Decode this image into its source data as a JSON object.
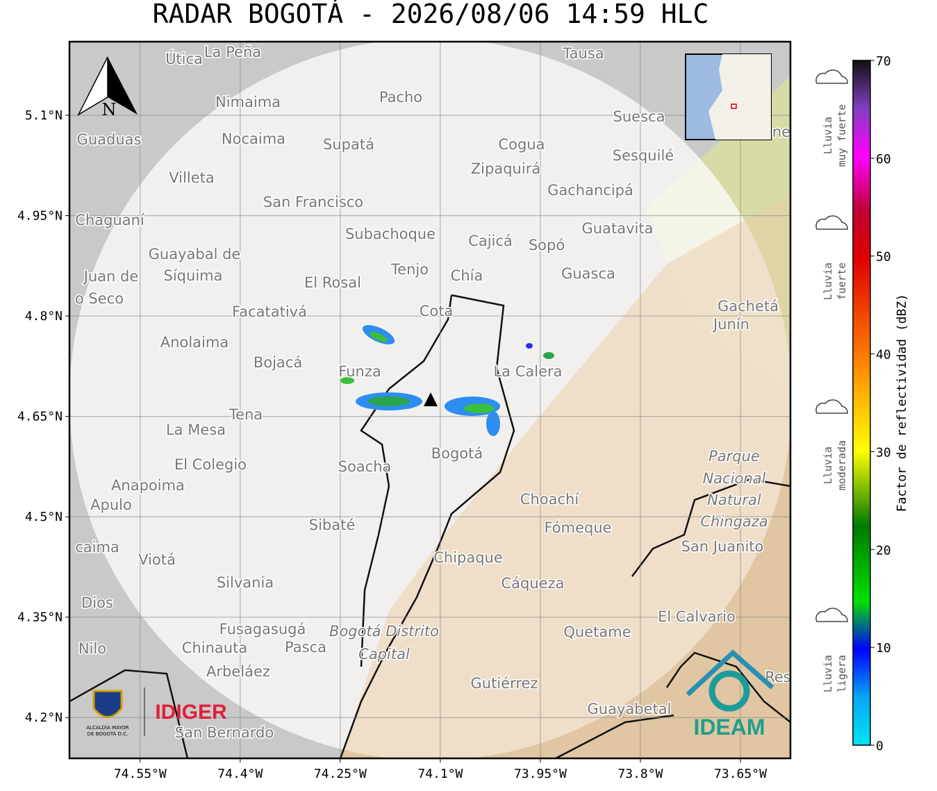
{
  "map": {
    "title": "RADAR BOGOTÁ - 2026/08/06 14:59 HLC",
    "xlim": [
      -74.656,
      -73.575
    ],
    "ylim": [
      4.139,
      5.21
    ],
    "xticks": [
      {
        "value": -74.55,
        "label": "74.55°W"
      },
      {
        "value": -74.4,
        "label": "74.4°W"
      },
      {
        "value": -74.25,
        "label": "74.25°W"
      },
      {
        "value": -74.1,
        "label": "74.1°W"
      },
      {
        "value": -73.95,
        "label": "73.95°W"
      },
      {
        "value": -73.8,
        "label": "73.8°W"
      },
      {
        "value": -73.65,
        "label": "73.65°W"
      }
    ],
    "yticks": [
      {
        "value": 5.1,
        "label": "5.1°N"
      },
      {
        "value": 4.95,
        "label": "4.95°N"
      },
      {
        "value": 4.8,
        "label": "4.8°N"
      },
      {
        "value": 4.65,
        "label": "4.65°N"
      },
      {
        "value": 4.5,
        "label": "4.5°N"
      },
      {
        "value": 4.35,
        "label": "4.35°N"
      },
      {
        "value": 4.2,
        "label": "4.2°N"
      }
    ],
    "north": "N",
    "places": [
      "Útica",
      "La Peña",
      "Tausa",
      "Pacho",
      "Nimaima",
      "Guaduas",
      "Nocaima",
      "Supatá",
      "Cogua",
      "Suesca",
      "Sesquilé",
      "Zipaquirá",
      "Villeta",
      "Gachancipá",
      "San Francisco",
      "Chaguaní",
      "Guatavita",
      "Subachoque",
      "Cajicá",
      "Sopó",
      "Guayabal de",
      "Síquima",
      "Juan de",
      "Tenjo",
      "Chía",
      "Guasca",
      "El Rosal",
      "o Seco",
      "Facatativá",
      "Cota",
      "Gachetá",
      "Junín",
      "Anolaima",
      "Bojacá",
      "Funza",
      "La Calera",
      "Tena",
      "La Mesa",
      "Bogotá",
      "Parque",
      "El Colegio",
      "Soacha",
      "Nacional",
      "Anapoima",
      "Apulo",
      "Natural",
      "Choachí",
      "Chingaza",
      "Sibaté",
      "Fómeque",
      "caima",
      "San Juanito",
      "Viotá",
      "Chipaque",
      "Silvania",
      "Cáqueza",
      "Dios",
      "El Calvario",
      "Fusagasugá",
      "Bogotá Distrito",
      "Quetame",
      "Nilo",
      "Chinauta",
      "Pasca",
      "Capital",
      "Arbeláez",
      "Gutiérrez",
      "Res",
      "Guayabetal",
      "San Bernardo",
      "ne"
    ],
    "logos": {
      "alcaldia": [
        "ALCALDÍA MAYOR",
        "DE BOGOTÁ D.C."
      ],
      "idiger": "IDIGER",
      "ideam": "IDEAM"
    }
  },
  "colorbar": {
    "label": "Factor de reflectividad (dBZ)",
    "lim": [
      0,
      70
    ],
    "ticks": [
      0,
      10,
      20,
      30,
      40,
      50,
      60,
      70
    ],
    "categories": [
      [
        "Lluvia",
        "muy fuerte"
      ],
      [
        "Lluvia",
        "fuerte"
      ],
      [
        "Lluvia",
        "moderada"
      ],
      [
        "Lluvia",
        "ligera"
      ]
    ]
  }
}
